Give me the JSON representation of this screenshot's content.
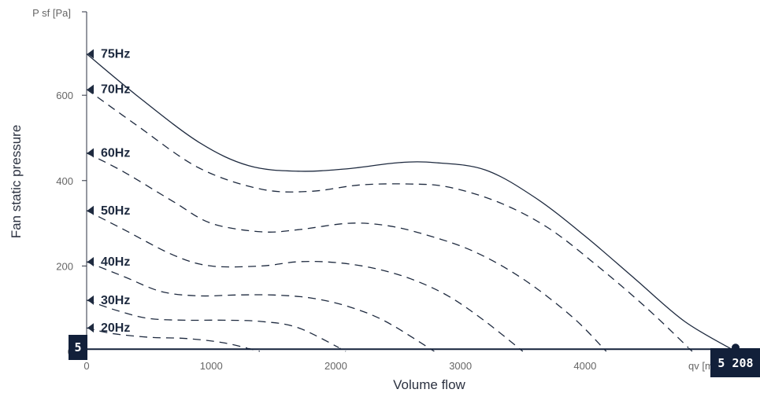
{
  "chart_data": {
    "type": "line",
    "xlabel": "Volume flow",
    "ylabel": "Fan static pressure",
    "x_unit_label": "qv [m",
    "y_unit_label": "P sf [Pa]",
    "xlim": [
      0,
      5208
    ],
    "ylim": [
      0,
      720
    ],
    "x_ticks": [
      0,
      1000,
      2000,
      3000,
      4000
    ],
    "y_ticks": [
      0,
      200,
      400,
      600
    ],
    "x_tick_labels": [
      "0",
      "1000",
      "2000",
      "3000",
      "4000"
    ],
    "y_tick_labels": [
      "0",
      "200",
      "400",
      "600"
    ],
    "grid": false,
    "line_color": "#1e2a3f",
    "badge_color": "#12203a",
    "series": [
      {
        "name": "75Hz",
        "style": "solid",
        "label_y": 697,
        "x": [
          0,
          400,
          900,
          1300,
          1700,
          2100,
          2500,
          2800,
          3200,
          3600,
          4000,
          4400,
          4800,
          5208
        ],
        "y": [
          697,
          600,
          490,
          435,
          422,
          428,
          442,
          442,
          425,
          360,
          270,
          170,
          70,
          0
        ]
      },
      {
        "name": "70Hz",
        "style": "dashed",
        "label_y": 614,
        "x": [
          0,
          400,
          900,
          1400,
          1800,
          2200,
          2600,
          2900,
          3300,
          3700,
          4100,
          4500,
          4860
        ],
        "y": [
          614,
          530,
          430,
          380,
          375,
          390,
          392,
          385,
          350,
          290,
          200,
          100,
          0
        ]
      },
      {
        "name": "60Hz",
        "style": "dashed",
        "label_y": 465,
        "x": [
          0,
          300,
          700,
          1000,
          1400,
          1700,
          2100,
          2400,
          2700,
          3100,
          3500,
          3900,
          4170
        ],
        "y": [
          465,
          420,
          350,
          300,
          280,
          285,
          300,
          295,
          275,
          235,
          170,
          80,
          0
        ]
      },
      {
        "name": "50Hz",
        "style": "dashed",
        "label_y": 330,
        "x": [
          0,
          300,
          700,
          1000,
          1400,
          1700,
          2000,
          2300,
          2600,
          2900,
          3200,
          3500
        ],
        "y": [
          330,
          285,
          225,
          200,
          200,
          210,
          208,
          195,
          170,
          130,
          70,
          0
        ]
      },
      {
        "name": "40Hz",
        "style": "dashed",
        "label_y": 210,
        "x": [
          0,
          300,
          600,
          900,
          1200,
          1500,
          1800,
          2100,
          2400,
          2790
        ],
        "y": [
          210,
          175,
          140,
          130,
          132,
          132,
          125,
          105,
          70,
          0
        ]
      },
      {
        "name": "30Hz",
        "style": "dashed",
        "label_y": 120,
        "x": [
          0,
          250,
          500,
          800,
          1100,
          1400,
          1700,
          2080
        ],
        "y": [
          120,
          95,
          77,
          73,
          73,
          70,
          55,
          0
        ]
      },
      {
        "name": "20Hz",
        "style": "dashed",
        "label_y": 55,
        "x": [
          0,
          200,
          500,
          800,
          1100,
          1390
        ],
        "y": [
          55,
          42,
          33,
          30,
          20,
          0
        ]
      }
    ],
    "operating_line": {
      "x": [
        0,
        5208
      ],
      "y": [
        5,
        5
      ]
    },
    "y_badge": "5",
    "x_badge": "5 208"
  }
}
